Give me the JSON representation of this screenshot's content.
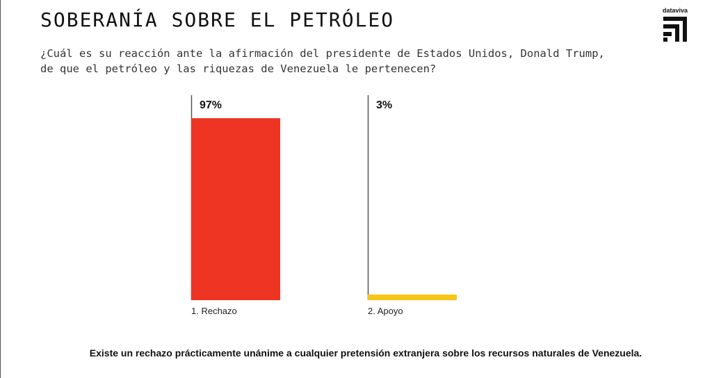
{
  "header": {
    "title": "SOBERANÍA SOBRE EL PETRÓLEO",
    "question_line1": "¿Cuál es su reacción ante la afirmación del presidente de Estados Unidos, Donald Trump,",
    "question_line2": "de que el petróleo y las riquezas de Venezuela le pertenecen?"
  },
  "logo": {
    "text": "dataviva",
    "icon": "dataviva-logo-icon"
  },
  "chart_data": {
    "type": "bar",
    "categories": [
      "1. Rechazo",
      "2. Apoyo"
    ],
    "values": [
      97,
      3
    ],
    "value_labels": [
      "97%",
      "3%"
    ],
    "ylim": [
      0,
      100
    ],
    "colors": [
      "#ee3524",
      "#f5c518"
    ],
    "grid": false,
    "legend": "none"
  },
  "footnote": {
    "text": "Existe un rechazo prácticamente unánime a cualquier pretensión extranjera sobre los recursos naturales de Venezuela."
  }
}
